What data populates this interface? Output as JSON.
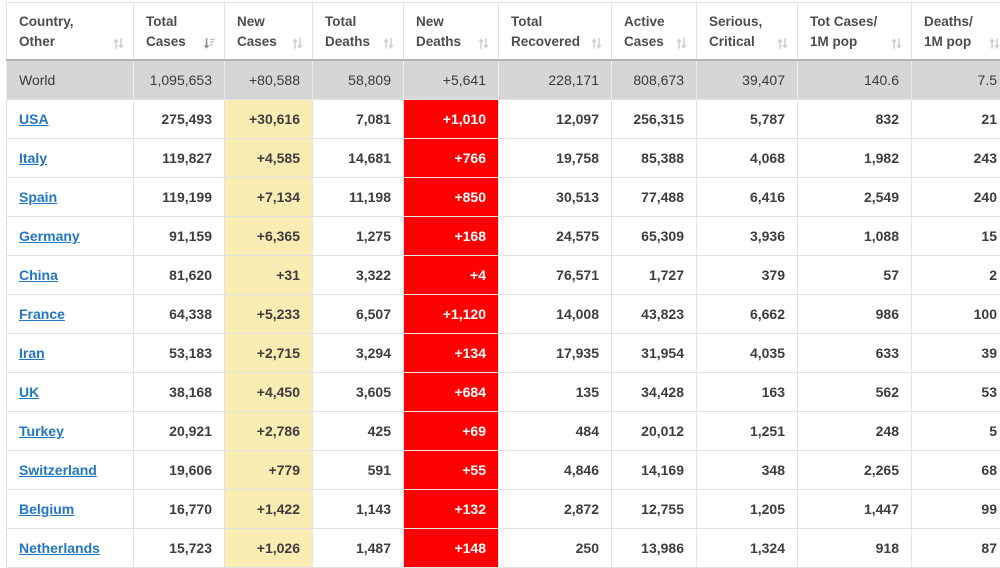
{
  "table": {
    "sorted_column": "total_cases",
    "sort_direction": "desc",
    "columns": [
      {
        "id": "country",
        "label_line1": "Country,",
        "label_line2": "Other",
        "sort": "none"
      },
      {
        "id": "total_cases",
        "label_line1": "Total",
        "label_line2": "Cases",
        "sort": "desc"
      },
      {
        "id": "new_cases",
        "label_line1": "New",
        "label_line2": "Cases",
        "sort": "none"
      },
      {
        "id": "total_deaths",
        "label_line1": "Total",
        "label_line2": "Deaths",
        "sort": "none"
      },
      {
        "id": "new_deaths",
        "label_line1": "New",
        "label_line2": "Deaths",
        "sort": "none"
      },
      {
        "id": "total_recovered",
        "label_line1": "Total",
        "label_line2": "Recovered",
        "sort": "none"
      },
      {
        "id": "active_cases",
        "label_line1": "Active",
        "label_line2": "Cases",
        "sort": "none"
      },
      {
        "id": "serious_critical",
        "label_line1": "Serious,",
        "label_line2": "Critical",
        "sort": "none"
      },
      {
        "id": "cases_per_1m",
        "label_line1": "Tot Cases/",
        "label_line2": "1M pop",
        "sort": "none"
      },
      {
        "id": "deaths_per_1m",
        "label_line1": "Deaths/",
        "label_line2": "1M pop",
        "sort": "none"
      }
    ],
    "total_row": {
      "country": "World",
      "cells": [
        "1,095,653",
        "+80,588",
        "58,809",
        "+5,641",
        "228,171",
        "808,673",
        "39,407",
        "140.6",
        "7.5"
      ]
    },
    "rows": [
      {
        "country": "USA",
        "cells": [
          "275,493",
          "+30,616",
          "7,081",
          "+1,010",
          "12,097",
          "256,315",
          "5,787",
          "832",
          "21"
        ]
      },
      {
        "country": "Italy",
        "cells": [
          "119,827",
          "+4,585",
          "14,681",
          "+766",
          "19,758",
          "85,388",
          "4,068",
          "1,982",
          "243"
        ]
      },
      {
        "country": "Spain",
        "cells": [
          "119,199",
          "+7,134",
          "11,198",
          "+850",
          "30,513",
          "77,488",
          "6,416",
          "2,549",
          "240"
        ]
      },
      {
        "country": "Germany",
        "cells": [
          "91,159",
          "+6,365",
          "1,275",
          "+168",
          "24,575",
          "65,309",
          "3,936",
          "1,088",
          "15"
        ]
      },
      {
        "country": "China",
        "cells": [
          "81,620",
          "+31",
          "3,322",
          "+4",
          "76,571",
          "1,727",
          "379",
          "57",
          "2"
        ]
      },
      {
        "country": "France",
        "cells": [
          "64,338",
          "+5,233",
          "6,507",
          "+1,120",
          "14,008",
          "43,823",
          "6,662",
          "986",
          "100"
        ]
      },
      {
        "country": "Iran",
        "cells": [
          "53,183",
          "+2,715",
          "3,294",
          "+134",
          "17,935",
          "31,954",
          "4,035",
          "633",
          "39"
        ]
      },
      {
        "country": "UK",
        "cells": [
          "38,168",
          "+4,450",
          "3,605",
          "+684",
          "135",
          "34,428",
          "163",
          "562",
          "53"
        ]
      },
      {
        "country": "Turkey",
        "cells": [
          "20,921",
          "+2,786",
          "425",
          "+69",
          "484",
          "20,012",
          "1,251",
          "248",
          "5"
        ]
      },
      {
        "country": "Switzerland",
        "cells": [
          "19,606",
          "+779",
          "591",
          "+55",
          "4,846",
          "14,169",
          "348",
          "2,265",
          "68"
        ]
      },
      {
        "country": "Belgium",
        "cells": [
          "16,770",
          "+1,422",
          "1,143",
          "+132",
          "2,872",
          "12,755",
          "1,205",
          "1,447",
          "99"
        ]
      },
      {
        "country": "Netherlands",
        "cells": [
          "15,723",
          "+1,026",
          "1,487",
          "+148",
          "250",
          "13,986",
          "1,324",
          "918",
          "87"
        ]
      }
    ],
    "colors": {
      "new_cases_highlight": "#FAEDB3",
      "new_deaths_highlight": "#FF0000",
      "new_deaths_text": "#FFFFFF",
      "total_row_bg": "#D6D6D6",
      "country_link": "#2276C3",
      "header_text": "#4D4D4D",
      "cell_text": "#3D3D3D"
    },
    "icons": {
      "unsorted": "sort-updown-icon",
      "sorted_desc": "sort-desc-icon"
    }
  }
}
